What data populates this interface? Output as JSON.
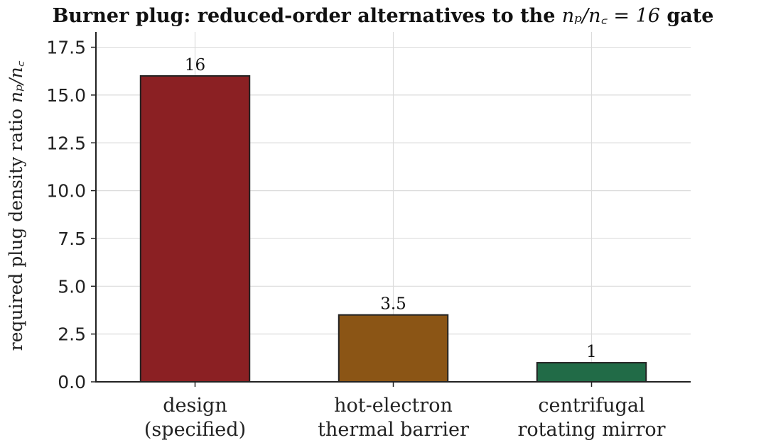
{
  "title": {
    "prefix": "Burner plug: reduced-order alternatives to the ",
    "math": "nₚ/n꜀ = 16",
    "suffix": " gate"
  },
  "chart_data": {
    "type": "bar",
    "title": "Burner plug: reduced-order alternatives to the n_p/n_c = 16 gate",
    "ylabel": "required plug density ratio n_p/n_c",
    "xlabel": "",
    "ylim": [
      0,
      18.3
    ],
    "yticks": [
      0.0,
      2.5,
      5.0,
      7.5,
      10.0,
      12.5,
      15.0,
      17.5
    ],
    "ytick_labels": [
      "0.0",
      "2.5",
      "5.0",
      "7.5",
      "10.0",
      "12.5",
      "15.0",
      "17.5"
    ],
    "grid": true,
    "categories": [
      [
        "design",
        "(specified)"
      ],
      [
        "hot-electron",
        "thermal barrier"
      ],
      [
        "centrifugal",
        "rotating mirror"
      ]
    ],
    "values": [
      16,
      3.5,
      1
    ],
    "data_labels": [
      "16",
      "3.5",
      "1"
    ],
    "colors": [
      "#8b2023",
      "#8b5515",
      "#216b47"
    ]
  },
  "ylabel_text": {
    "prefix": "required plug density ratio ",
    "math": "nₚ/n꜀"
  }
}
